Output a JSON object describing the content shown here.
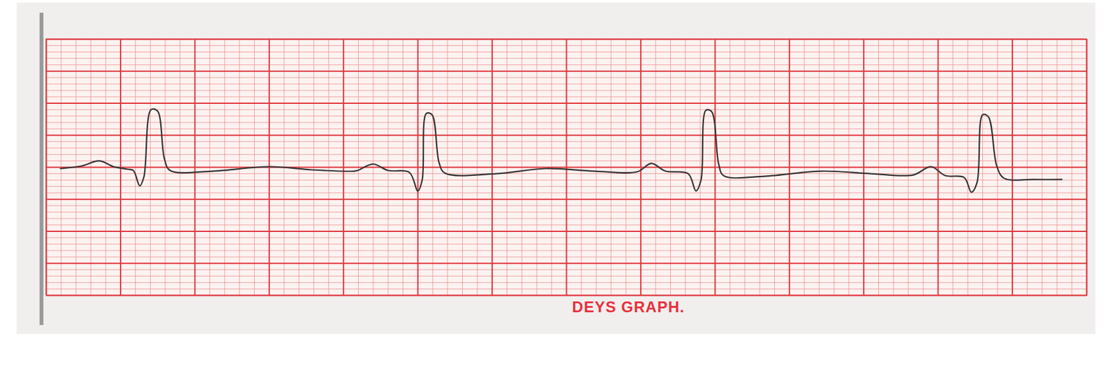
{
  "chart_data": {
    "type": "line",
    "caption": "DEYS GRAPH.",
    "grid": true,
    "tick_labels": false,
    "xlim": [
      0,
      70
    ],
    "ylim": [
      0,
      40
    ],
    "xticks": [
      0,
      1,
      2,
      3,
      4,
      5,
      6,
      7,
      8,
      9,
      10,
      11,
      12,
      13,
      14,
      15,
      16,
      17,
      18,
      19,
      20,
      21,
      22,
      23,
      24,
      25,
      26,
      27,
      28,
      29,
      30,
      31,
      32,
      33,
      34,
      35,
      36,
      37,
      38,
      39,
      40,
      41,
      42,
      43,
      44,
      45,
      46,
      47,
      48,
      49,
      50,
      51,
      52,
      53,
      54,
      55,
      56,
      57,
      58,
      59,
      60,
      61,
      62,
      63,
      64,
      65,
      66,
      67,
      68,
      69,
      70
    ],
    "yticks": [
      0,
      1,
      2,
      3,
      4,
      5,
      6,
      7,
      8,
      9,
      10,
      11,
      12,
      13,
      14,
      15,
      16,
      17,
      18,
      19,
      20,
      21,
      22,
      23,
      24,
      25,
      26,
      27,
      28,
      29,
      30,
      31,
      32,
      33,
      34,
      35,
      36,
      37,
      38,
      39,
      40
    ],
    "color": "#333333",
    "line_style": "solid",
    "x": [
      0.95,
      2.38,
      3.57,
      4.52,
      5.48,
      5.86,
      6.29,
      6.57,
      7.05,
      7.48,
      7.95,
      8.33,
      11.19,
      15.0,
      17.86,
      20.71,
      20.95,
      22.0,
      23.0,
      24.43,
      25.0,
      25.29,
      25.57,
      25.95,
      26.43,
      26.81,
      30.24,
      33.57,
      36.9,
      39.76,
      40.71,
      41.67,
      43.19,
      43.71,
      44.05,
      44.38,
      44.76,
      45.24,
      45.57,
      48.33,
      52.14,
      55.48,
      58.33,
      59.52,
      60.48,
      61.76,
      62.24,
      62.62,
      63.0,
      63.38,
      63.95,
      64.43,
      66.43,
      68.33
    ],
    "values": [
      19.8,
      20.2,
      21.0,
      20.1,
      19.7,
      19.5,
      17.1,
      18.5,
      29.0,
      28.8,
      21.3,
      19.5,
      19.4,
      20.1,
      19.6,
      19.4,
      19.5,
      20.5,
      19.5,
      19.2,
      16.3,
      18.0,
      28.4,
      28.2,
      20.7,
      19.1,
      19.0,
      19.8,
      19.4,
      19.3,
      20.6,
      19.4,
      19.0,
      16.3,
      18.0,
      28.9,
      28.7,
      20.5,
      18.7,
      18.6,
      19.4,
      19.0,
      18.8,
      20.1,
      18.7,
      18.4,
      16.1,
      17.6,
      28.2,
      27.9,
      20.2,
      18.3,
      18.1,
      18.1
    ]
  }
}
